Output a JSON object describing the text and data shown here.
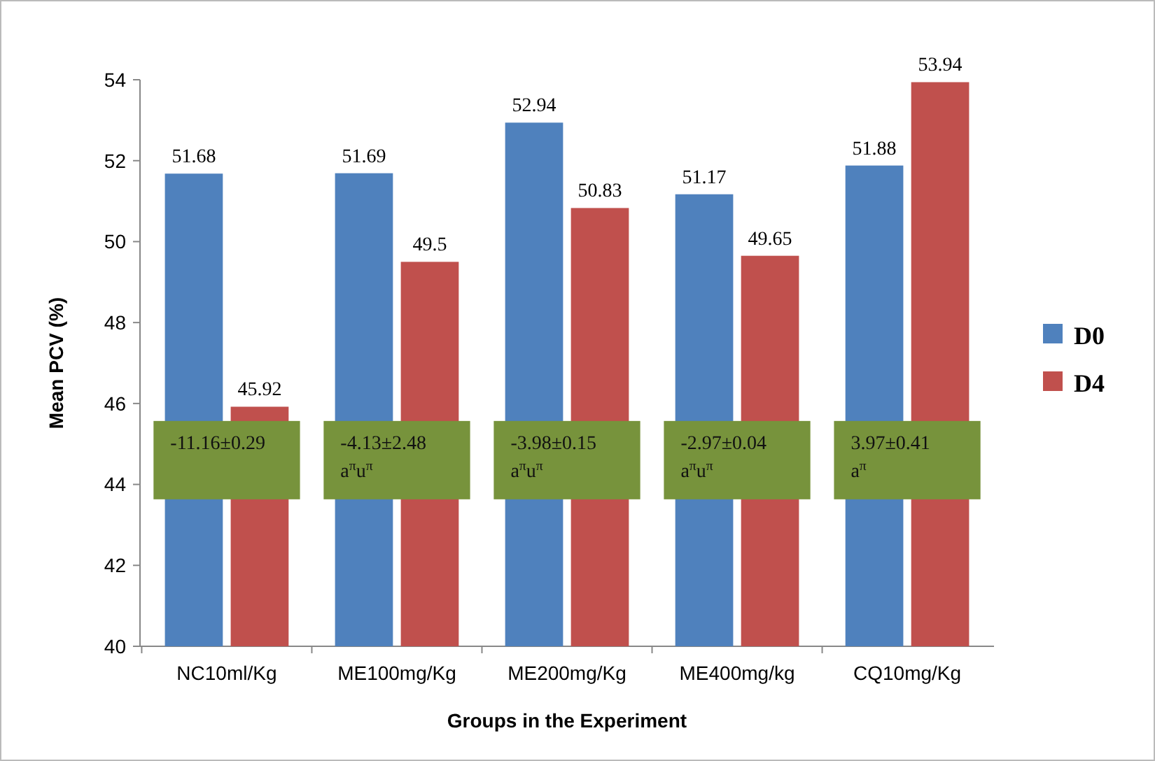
{
  "chart_data": {
    "type": "bar",
    "xlabel": "Groups in the Experiment",
    "ylabel": "Mean PCV (%)",
    "categories": [
      "NC10ml/Kg",
      "ME100mg/Kg",
      "ME200mg/Kg",
      "ME400mg/kg",
      "CQ10mg/Kg"
    ],
    "series": [
      {
        "name": "D0",
        "color": "#4f81bd",
        "values": [
          51.68,
          51.69,
          52.94,
          51.17,
          51.88
        ]
      },
      {
        "name": "D4",
        "color": "#c0504d",
        "values": [
          45.92,
          49.5,
          50.83,
          49.65,
          53.94
        ]
      }
    ],
    "ylim": [
      40,
      54
    ],
    "yticks": [
      40,
      42,
      44,
      46,
      48,
      50,
      52,
      54
    ],
    "data_labels": true,
    "legend": "right",
    "grid": false,
    "annotations": [
      {
        "text": "-11.16±0.29",
        "x": "NC10ml/Kg",
        "y": 44.6
      },
      {
        "text": "-4.13±2.48\na$^{π}$u$^{π}$",
        "x": "ME100mg/Kg",
        "y": 44.6
      },
      {
        "text": "-3.98±0.15\na$^{π}$u$^{π}$",
        "x": "ME200mg/Kg",
        "y": 44.6
      },
      {
        "text": "-2.97±0.04\na$^{π}$u$^{π}$",
        "x": "ME400mg/kg",
        "y": 44.6
      },
      {
        "text": "3.97±0.41\na$^{π}$",
        "x": "CQ10mg/Kg",
        "y": 44.6
      }
    ]
  }
}
